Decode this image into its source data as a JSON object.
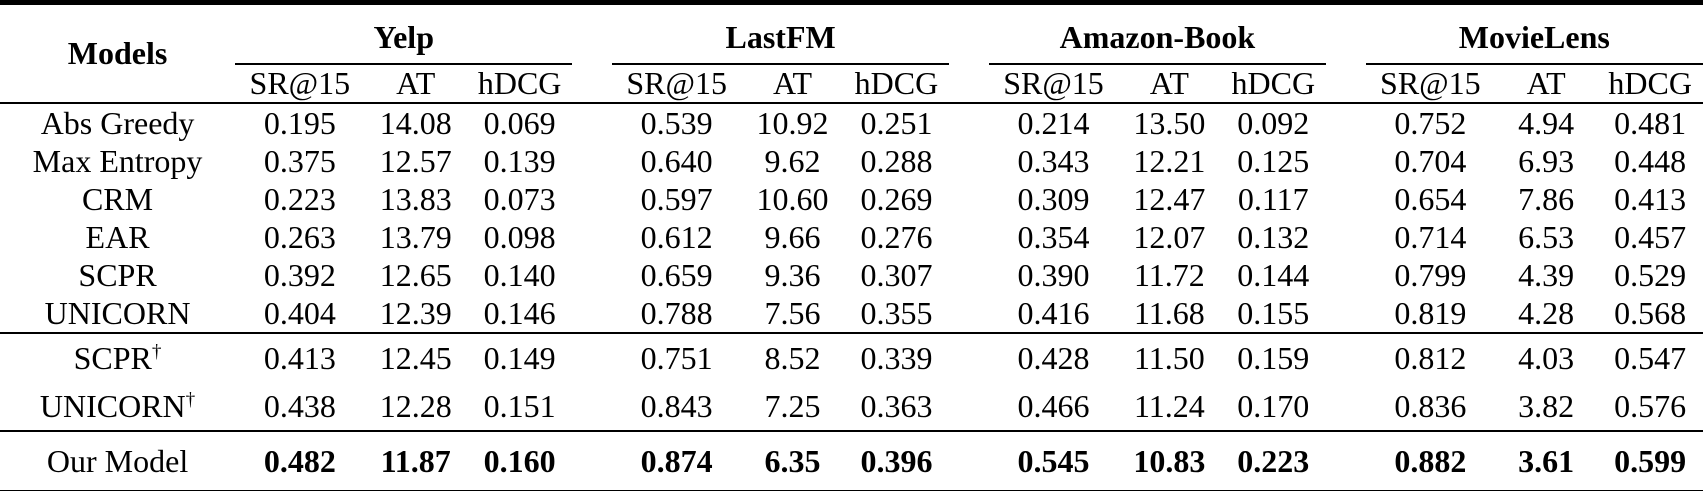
{
  "table": {
    "models_header": "Models",
    "groups": [
      {
        "name": "Yelp",
        "metrics": [
          "SR@15",
          "AT",
          "hDCG"
        ]
      },
      {
        "name": "LastFM",
        "metrics": [
          "SR@15",
          "AT",
          "hDCG"
        ]
      },
      {
        "name": "Amazon-Book",
        "metrics": [
          "SR@15",
          "AT",
          "hDCG"
        ]
      },
      {
        "name": "MovieLens",
        "metrics": [
          "SR@15",
          "AT",
          "hDCG"
        ]
      }
    ],
    "sections": [
      {
        "rows": [
          {
            "model": "Abs Greedy",
            "values": [
              "0.195",
              "14.08",
              "0.069",
              "0.539",
              "10.92",
              "0.251",
              "0.214",
              "13.50",
              "0.092",
              "0.752",
              "4.94",
              "0.481"
            ]
          },
          {
            "model": "Max Entropy",
            "values": [
              "0.375",
              "12.57",
              "0.139",
              "0.640",
              "9.62",
              "0.288",
              "0.343",
              "12.21",
              "0.125",
              "0.704",
              "6.93",
              "0.448"
            ]
          },
          {
            "model": "CRM",
            "values": [
              "0.223",
              "13.83",
              "0.073",
              "0.597",
              "10.60",
              "0.269",
              "0.309",
              "12.47",
              "0.117",
              "0.654",
              "7.86",
              "0.413"
            ]
          },
          {
            "model": "EAR",
            "values": [
              "0.263",
              "13.79",
              "0.098",
              "0.612",
              "9.66",
              "0.276",
              "0.354",
              "12.07",
              "0.132",
              "0.714",
              "6.53",
              "0.457"
            ]
          },
          {
            "model": "SCPR",
            "values": [
              "0.392",
              "12.65",
              "0.140",
              "0.659",
              "9.36",
              "0.307",
              "0.390",
              "11.72",
              "0.144",
              "0.799",
              "4.39",
              "0.529"
            ]
          },
          {
            "model": "UNICORN",
            "values": [
              "0.404",
              "12.39",
              "0.146",
              "0.788",
              "7.56",
              "0.355",
              "0.416",
              "11.68",
              "0.155",
              "0.819",
              "4.28",
              "0.568"
            ]
          }
        ]
      },
      {
        "rows": [
          {
            "model": "SCPR",
            "sup": "†",
            "values": [
              "0.413",
              "12.45",
              "0.149",
              "0.751",
              "8.52",
              "0.339",
              "0.428",
              "11.50",
              "0.159",
              "0.812",
              "4.03",
              "0.547"
            ]
          },
          {
            "model": "UNICORN",
            "sup": "†",
            "values": [
              "0.438",
              "12.28",
              "0.151",
              "0.843",
              "7.25",
              "0.363",
              "0.466",
              "11.24",
              "0.170",
              "0.836",
              "3.82",
              "0.576"
            ]
          }
        ]
      },
      {
        "rows": [
          {
            "model": "Our Model",
            "bold": true,
            "values": [
              "0.482",
              "11.87",
              "0.160",
              "0.874",
              "6.35",
              "0.396",
              "0.545",
              "10.83",
              "0.223",
              "0.882",
              "3.61",
              "0.599"
            ]
          }
        ]
      }
    ]
  }
}
